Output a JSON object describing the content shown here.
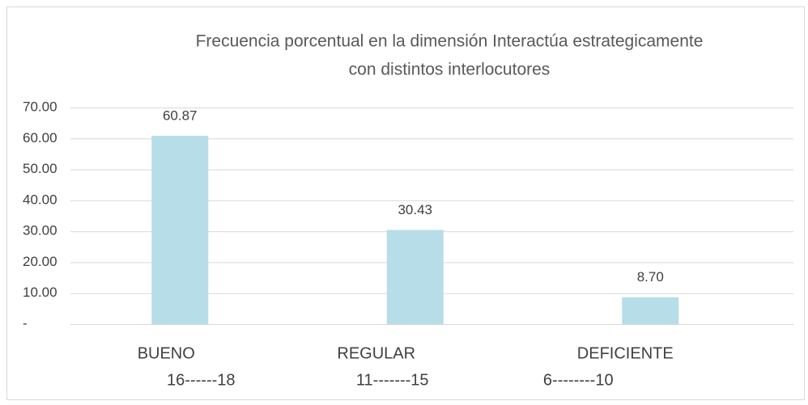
{
  "chart_data": {
    "type": "bar",
    "title": [
      "Frecuencia porcentual en la dimensión Interactúa estrategicamente",
      "con distintos interlocutores"
    ],
    "categories": [
      [
        "BUENO",
        "16------18"
      ],
      [
        "REGULAR",
        "11-------15"
      ],
      [
        "DEFICIENTE",
        "6--------10"
      ]
    ],
    "values": [
      60.87,
      30.43,
      8.7
    ],
    "value_labels": [
      "60.87",
      "30.43",
      "8.70"
    ],
    "color": "#b7dde8",
    "ylim": [
      0,
      70
    ],
    "yticks": [
      {
        "value": 0,
        "label": "-"
      },
      {
        "value": 10,
        "label": "10.00"
      },
      {
        "value": 20,
        "label": "20.00"
      },
      {
        "value": 30,
        "label": "30.00"
      },
      {
        "value": 40,
        "label": "40.00"
      },
      {
        "value": 50,
        "label": "50.00"
      },
      {
        "value": 60,
        "label": "60.00"
      },
      {
        "value": 70,
        "label": "70.00"
      }
    ],
    "grid": true
  }
}
